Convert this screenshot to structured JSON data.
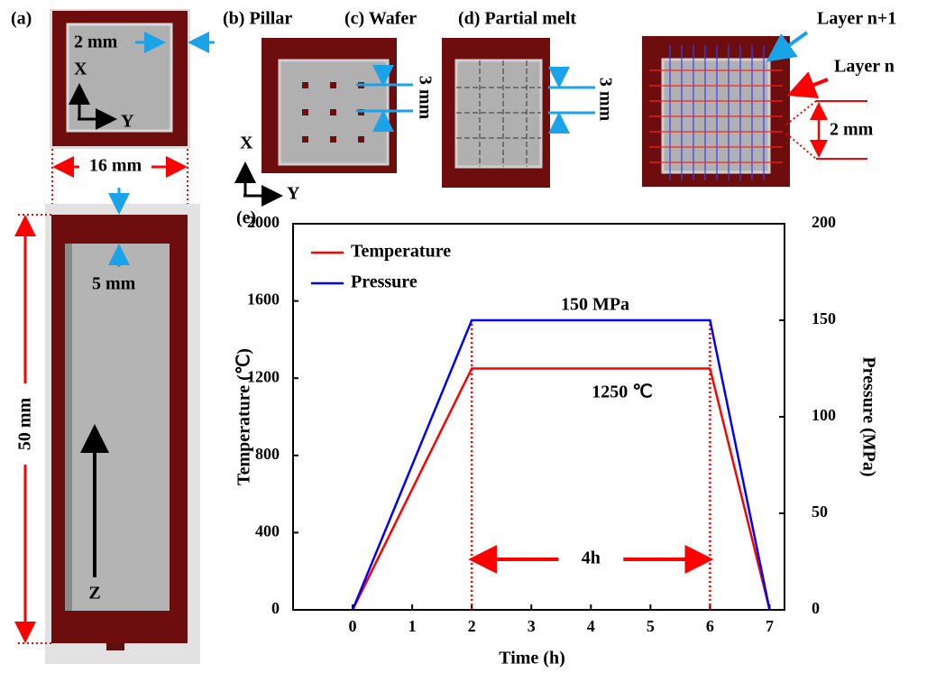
{
  "panels": {
    "a": {
      "label": "(a)",
      "gap": "2 mm",
      "x_axis": "X",
      "y_axis": "Y",
      "width": "16 mm",
      "top": "5 mm",
      "height": "50 mm",
      "z_axis": "Z"
    },
    "b": {
      "label": "(b) Pillar",
      "spacing": "3 mm",
      "x_axis": "X",
      "y_axis": "Y"
    },
    "c": {
      "label": "(c) Wafer",
      "spacing": "3 mm"
    },
    "d": {
      "label": "(d) Partial melt",
      "upper_layer": "Layer n+1",
      "lower_layer": "Layer n",
      "spacing": "2 mm"
    }
  },
  "chart_data": {
    "type": "line",
    "panel_label": "(e)",
    "x_label": "Time (h)",
    "y_label": "Temperature (℃)",
    "y2_label": "Pressure (MPa)",
    "x": [
      0,
      2,
      6,
      7
    ],
    "series": [
      {
        "name": "Temperature",
        "color": "#ff0000",
        "values": [
          0,
          1250,
          1250,
          0
        ]
      },
      {
        "name": "Pressure",
        "color": "#0000ff",
        "values": [
          0,
          150,
          150,
          0
        ],
        "axis": "y2"
      }
    ],
    "xlim": [
      -1,
      7.25
    ],
    "xticks": [
      0,
      1,
      2,
      3,
      4,
      5,
      6,
      7
    ],
    "ylim": [
      0,
      2000
    ],
    "yticks": [
      0,
      400,
      800,
      1200,
      1600,
      2000
    ],
    "y2lim": [
      0,
      200
    ],
    "y2ticks": [
      0,
      50,
      100,
      150,
      200
    ],
    "legend": "upper left",
    "annotations": [
      "150 MPa",
      "1250 ℃",
      "4h"
    ]
  }
}
